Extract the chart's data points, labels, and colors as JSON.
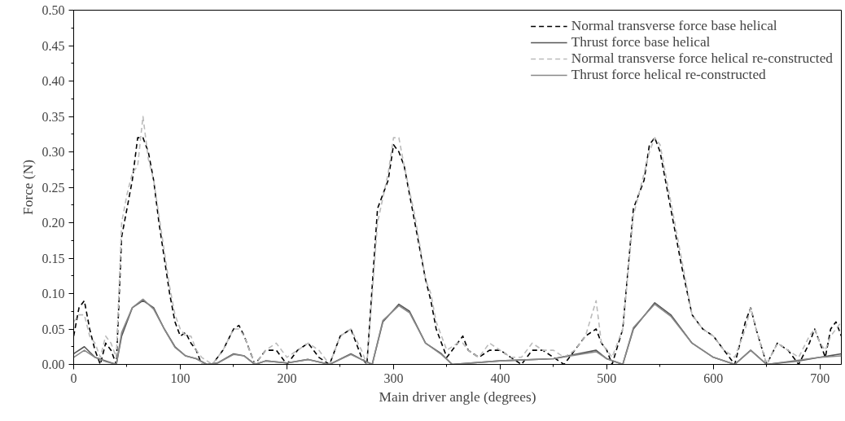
{
  "chart_data": {
    "type": "line",
    "xlabel": "Main driver angle (degrees)",
    "ylabel": "Force (N)",
    "xlim": [
      0,
      720
    ],
    "xticks": [
      0,
      100,
      200,
      300,
      400,
      500,
      600,
      700
    ],
    "ylim": [
      0,
      0.5
    ],
    "yticks": [
      {
        "value": 0,
        "label": "0.00"
      },
      0.05,
      {
        "value": 0.1,
        "label": "0.10"
      },
      0.15,
      {
        "value": 0.2,
        "label": "0.20"
      },
      0.25,
      {
        "value": 0.3,
        "label": "0.30"
      },
      0.35,
      {
        "value": 0.4,
        "label": "0.40"
      },
      0.45,
      {
        "value": 0.5,
        "label": "0.50"
      }
    ],
    "grid": false,
    "legend": "top right",
    "series": [
      {
        "name": "Normal transverse force base helical",
        "color": "#000000",
        "line_style": "dashed",
        "x": [
          0,
          5,
          10,
          15,
          20,
          25,
          30,
          35,
          40,
          45,
          50,
          55,
          60,
          65,
          70,
          75,
          80,
          85,
          90,
          95,
          100,
          105,
          110,
          115,
          120,
          130,
          140,
          150,
          155,
          160,
          165,
          170,
          180,
          190,
          200,
          210,
          220,
          230,
          240,
          250,
          260,
          270,
          275,
          285,
          295,
          300,
          305,
          310,
          320,
          330,
          335,
          340,
          345,
          350,
          360,
          365,
          370,
          380,
          390,
          400,
          410,
          420,
          430,
          440,
          450,
          460,
          470,
          480,
          490,
          495,
          500,
          505,
          515,
          525,
          535,
          540,
          545,
          550,
          560,
          570,
          580,
          590,
          600,
          610,
          620,
          630,
          635,
          640,
          650,
          660,
          670,
          680,
          690,
          695,
          700,
          705,
          710,
          715,
          720
        ],
        "values": [
          0.04,
          0.08,
          0.09,
          0.05,
          0.02,
          0.0,
          0.03,
          0.02,
          0.0,
          0.18,
          0.22,
          0.26,
          0.32,
          0.32,
          0.3,
          0.26,
          0.2,
          0.15,
          0.1,
          0.06,
          0.04,
          0.045,
          0.03,
          0.02,
          0.0,
          0.0,
          0.02,
          0.05,
          0.055,
          0.04,
          0.02,
          0.0,
          0.02,
          0.02,
          0.0,
          0.02,
          0.03,
          0.01,
          0.0,
          0.04,
          0.05,
          0.01,
          0.0,
          0.22,
          0.26,
          0.31,
          0.3,
          0.28,
          0.2,
          0.12,
          0.09,
          0.05,
          0.03,
          0.01,
          0.03,
          0.04,
          0.02,
          0.01,
          0.02,
          0.02,
          0.01,
          0.0,
          0.02,
          0.02,
          0.01,
          0.0,
          0.02,
          0.04,
          0.05,
          0.03,
          0.02,
          0.0,
          0.05,
          0.22,
          0.26,
          0.31,
          0.32,
          0.3,
          0.22,
          0.14,
          0.07,
          0.05,
          0.04,
          0.02,
          0.0,
          0.06,
          0.08,
          0.05,
          0.0,
          0.03,
          0.02,
          0.0,
          0.03,
          0.05,
          0.03,
          0.01,
          0.05,
          0.06,
          0.04
        ]
      },
      {
        "name": "Thrust force base helical",
        "color": "#555555",
        "line_style": "solid",
        "x": [
          0,
          10,
          20,
          30,
          40,
          45,
          55,
          65,
          75,
          85,
          95,
          105,
          115,
          125,
          135,
          150,
          160,
          170,
          180,
          200,
          220,
          240,
          260,
          270,
          280,
          290,
          305,
          315,
          330,
          345,
          355,
          400,
          450,
          490,
          500,
          515,
          525,
          545,
          560,
          580,
          600,
          620,
          635,
          650,
          680,
          700,
          720
        ],
        "values": [
          0.015,
          0.025,
          0.01,
          0.005,
          0.0,
          0.04,
          0.08,
          0.09,
          0.08,
          0.05,
          0.025,
          0.012,
          0.008,
          0.0,
          0.002,
          0.015,
          0.012,
          0.0,
          0.005,
          0.002,
          0.007,
          0.0,
          0.015,
          0.007,
          0.0,
          0.06,
          0.085,
          0.075,
          0.03,
          0.015,
          0.0,
          0.005,
          0.008,
          0.02,
          0.008,
          0.0,
          0.05,
          0.087,
          0.07,
          0.03,
          0.01,
          0.0,
          0.02,
          0.0,
          0.005,
          0.01,
          0.015
        ]
      },
      {
        "name": "Normal transverse force helical re-constructed",
        "color": "#bbbbbb",
        "line_style": "dashed",
        "x": [
          0,
          5,
          10,
          15,
          20,
          25,
          30,
          35,
          40,
          45,
          50,
          55,
          60,
          65,
          70,
          75,
          80,
          85,
          90,
          95,
          100,
          105,
          110,
          115,
          120,
          130,
          140,
          150,
          155,
          160,
          165,
          170,
          180,
          190,
          200,
          210,
          220,
          230,
          240,
          250,
          260,
          270,
          275,
          285,
          295,
          300,
          305,
          310,
          320,
          330,
          335,
          340,
          345,
          350,
          360,
          365,
          370,
          380,
          390,
          400,
          410,
          420,
          430,
          440,
          450,
          460,
          470,
          480,
          490,
          495,
          500,
          505,
          515,
          525,
          535,
          540,
          545,
          550,
          560,
          570,
          580,
          590,
          600,
          610,
          620,
          630,
          635,
          640,
          650,
          660,
          670,
          680,
          690,
          695,
          700,
          705,
          710,
          715,
          720
        ],
        "values": [
          0.06,
          0.07,
          0.07,
          0.04,
          0.03,
          0.01,
          0.04,
          0.03,
          0.01,
          0.2,
          0.24,
          0.27,
          0.28,
          0.35,
          0.29,
          0.26,
          0.21,
          0.16,
          0.11,
          0.07,
          0.05,
          0.04,
          0.04,
          0.02,
          0.01,
          0.0,
          0.02,
          0.05,
          0.05,
          0.04,
          0.02,
          0.0,
          0.02,
          0.03,
          0.01,
          0.02,
          0.03,
          0.02,
          0.0,
          0.04,
          0.05,
          0.02,
          0.0,
          0.2,
          0.27,
          0.32,
          0.32,
          0.28,
          0.21,
          0.12,
          0.1,
          0.06,
          0.04,
          0.02,
          0.03,
          0.03,
          0.02,
          0.01,
          0.03,
          0.02,
          0.01,
          0.01,
          0.03,
          0.02,
          0.02,
          0.01,
          0.02,
          0.04,
          0.09,
          0.03,
          0.02,
          0.01,
          0.05,
          0.21,
          0.27,
          0.3,
          0.32,
          0.31,
          0.23,
          0.15,
          0.07,
          0.05,
          0.04,
          0.02,
          0.01,
          0.05,
          0.08,
          0.05,
          0.0,
          0.03,
          0.02,
          0.01,
          0.04,
          0.05,
          0.03,
          0.02,
          0.04,
          0.05,
          0.06
        ]
      },
      {
        "name": "Thrust force helical re-constructed",
        "color": "#888888",
        "line_style": "solid",
        "x": [
          0,
          10,
          20,
          30,
          40,
          45,
          55,
          65,
          75,
          85,
          95,
          105,
          115,
          125,
          135,
          150,
          160,
          170,
          180,
          200,
          220,
          240,
          260,
          270,
          280,
          290,
          305,
          315,
          330,
          345,
          355,
          400,
          450,
          490,
          500,
          515,
          525,
          545,
          560,
          580,
          600,
          620,
          635,
          650,
          680,
          700,
          720
        ],
        "values": [
          0.01,
          0.02,
          0.01,
          0.004,
          0.0,
          0.045,
          0.08,
          0.092,
          0.078,
          0.05,
          0.024,
          0.012,
          0.008,
          0.0,
          0.002,
          0.014,
          0.012,
          0.0,
          0.005,
          0.002,
          0.007,
          0.0,
          0.014,
          0.007,
          0.0,
          0.062,
          0.083,
          0.073,
          0.03,
          0.014,
          0.0,
          0.005,
          0.008,
          0.018,
          0.008,
          0.0,
          0.052,
          0.085,
          0.068,
          0.03,
          0.01,
          0.0,
          0.02,
          0.0,
          0.006,
          0.01,
          0.012
        ]
      }
    ]
  }
}
